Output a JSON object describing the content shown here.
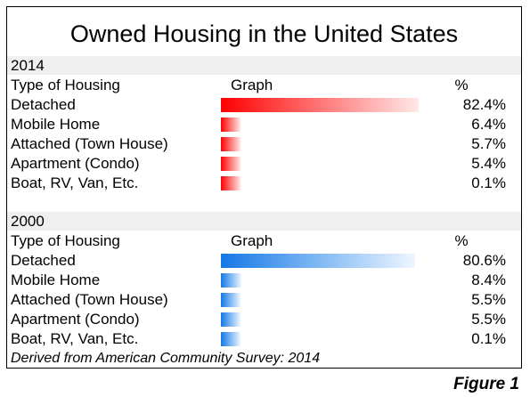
{
  "chart_data": {
    "type": "bar",
    "title": "Owned Housing in the United States",
    "column_headers": {
      "category": "Type of Housing",
      "graph": "Graph",
      "value": "%"
    },
    "categories": [
      "Detached",
      "Mobile Home",
      "Attached (Town House)",
      "Apartment (Condo)",
      "Boat, RV, Van, Etc."
    ],
    "series": [
      {
        "name": "2014",
        "color": "#ff0000",
        "values": [
          82.4,
          6.4,
          5.7,
          5.4,
          0.1
        ],
        "labels": [
          "82.4%",
          "6.4%",
          "5.7%",
          "5.4%",
          "0.1%"
        ]
      },
      {
        "name": "2000",
        "color": "#1577e6",
        "values": [
          80.6,
          8.4,
          5.5,
          5.5,
          0.1
        ],
        "labels": [
          "80.6%",
          "8.4%",
          "5.5%",
          "5.5%",
          "0.1%"
        ]
      }
    ],
    "source": "Derived from American Community Survey: 2014"
  },
  "figure_label": "Figure 1"
}
